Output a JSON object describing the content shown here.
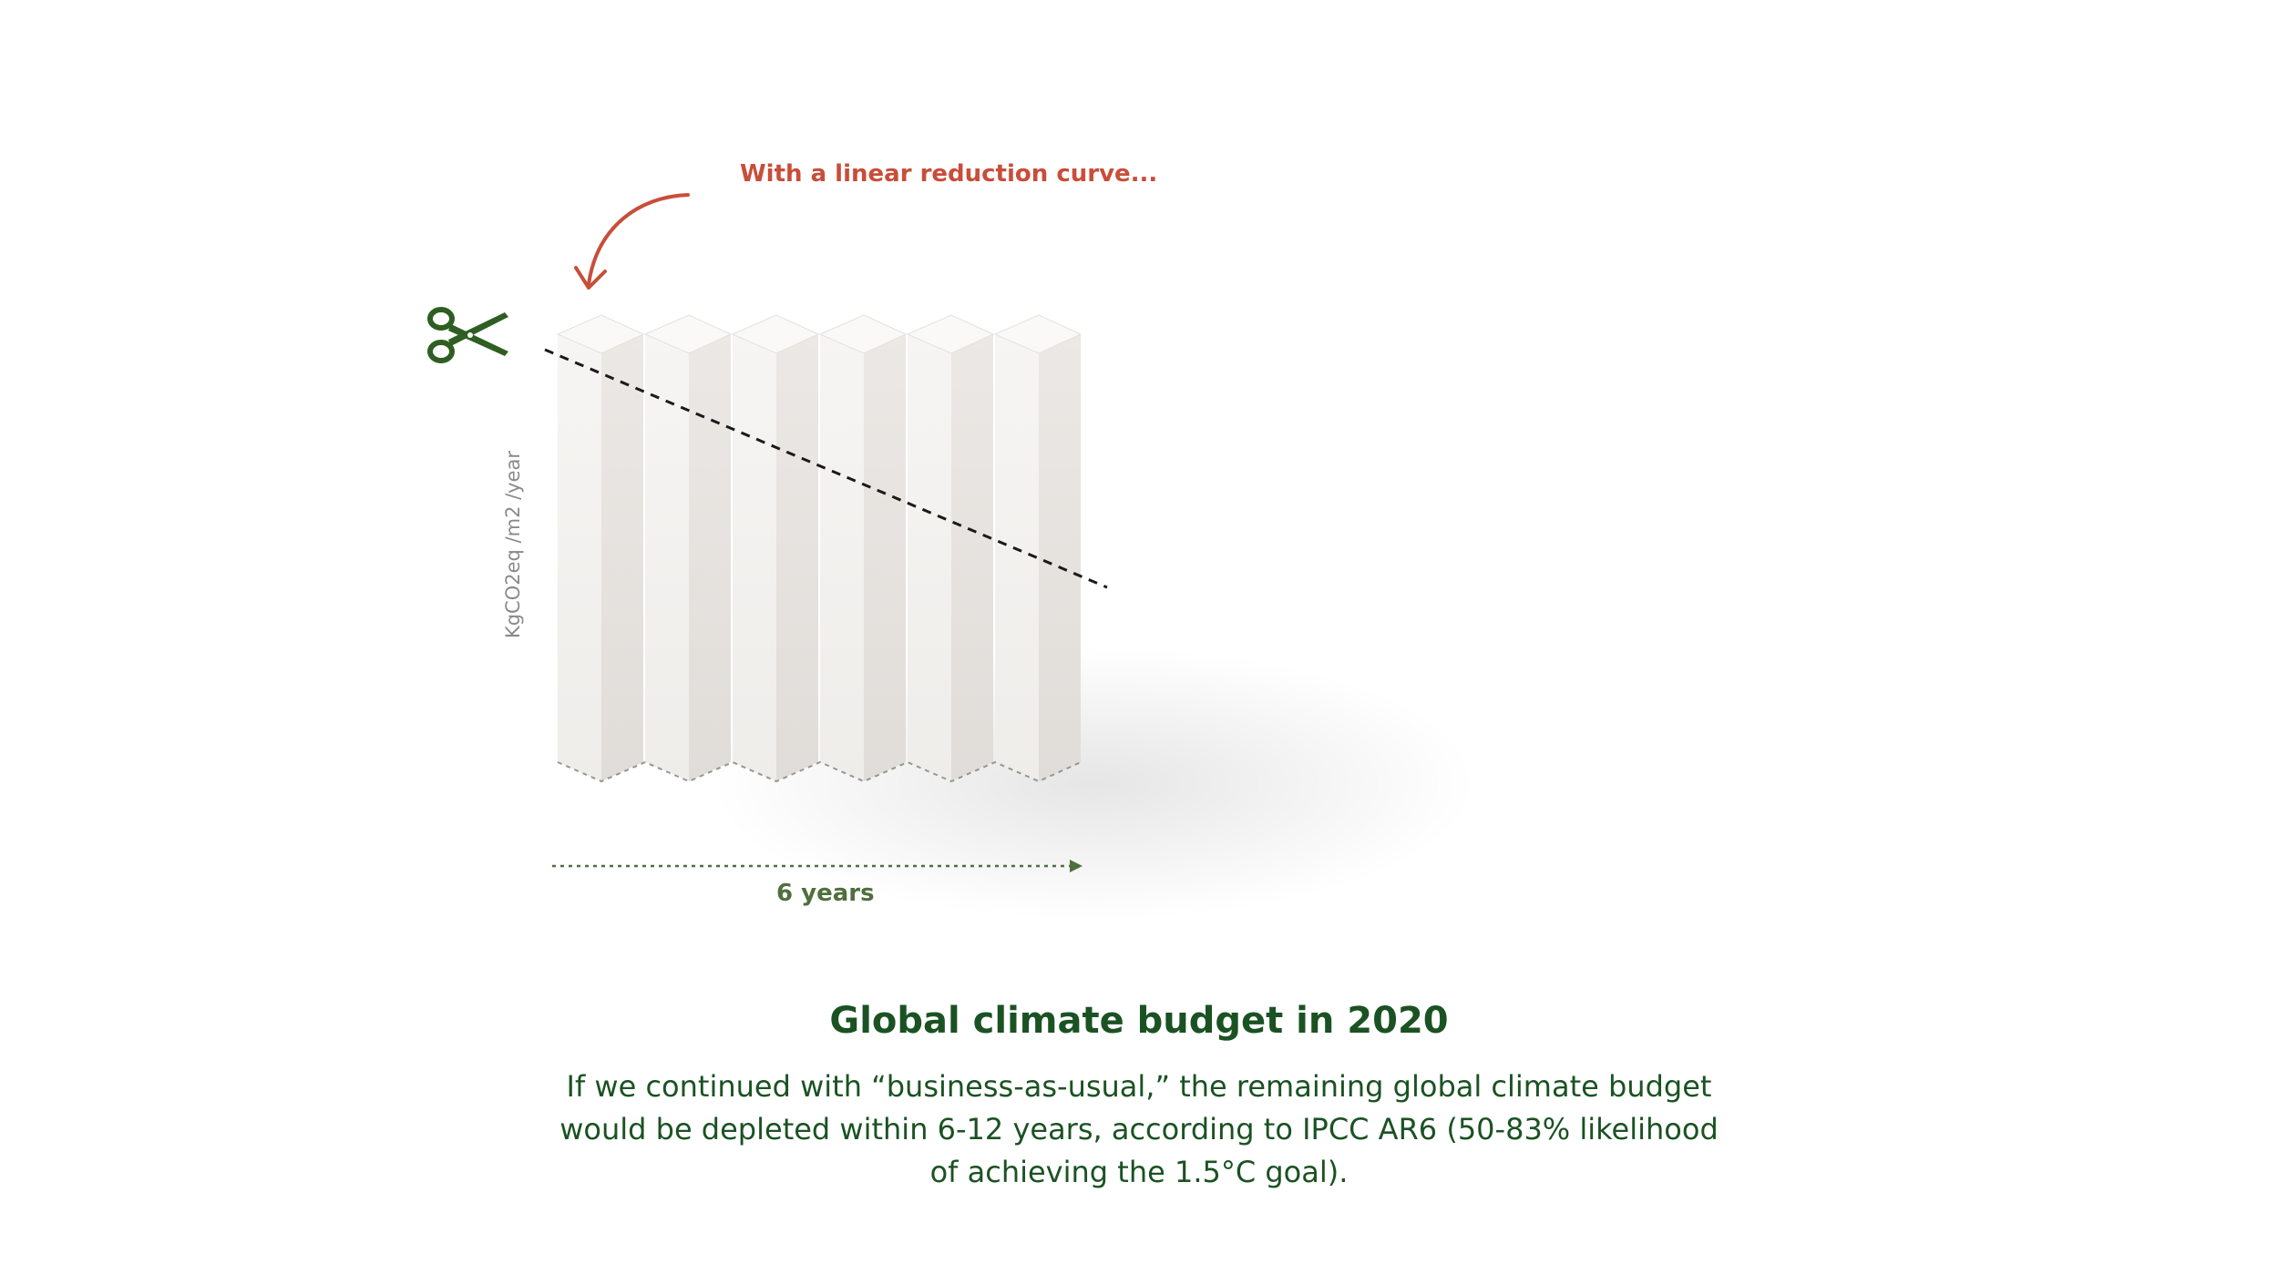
{
  "diagram": {
    "annotation": "With a linear reduction curve...",
    "y_axis_label": "KgCO2eq /m2 /year",
    "x_axis_label": "6 years",
    "scissors_icon": "scissors-icon",
    "arrow_icon": "curved-arrow-icon",
    "colors": {
      "annotation": "#c84e3a",
      "scissors": "#2f5e22",
      "axis": "#4f6f3e",
      "column_front": "#f2f0ee",
      "column_side": "#e6e3e0",
      "column_top": "#faf9f8",
      "heading": "#1b5223"
    }
  },
  "caption": {
    "title": "Global climate budget in 2020",
    "body": "If we continued with “business-as-usual,” the remaining global climate budget would be depleted within 6-12 years, according to IPCC AR6 (50-83% likelihood of achieving the 1.5°C goal)."
  }
}
